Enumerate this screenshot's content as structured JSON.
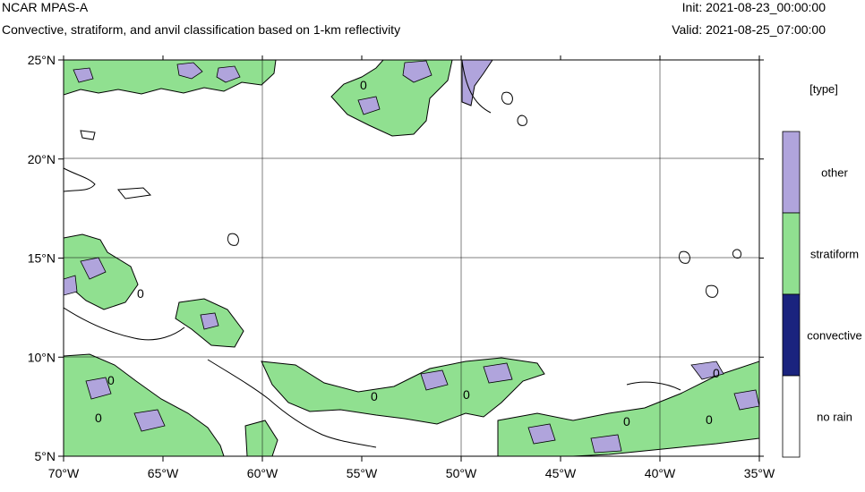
{
  "header": {
    "model": "NCAR MPAS-A",
    "description": "Convective, stratiform, and anvil classification based on 1-km reflectivity",
    "init": "Init: 2021-08-23_00:00:00",
    "valid": "Valid: 2021-08-25_07:00:00"
  },
  "map": {
    "lon_range": [
      -70,
      -35
    ],
    "lat_range": [
      5,
      25
    ],
    "lon_ticks": [
      {
        "value": -70,
        "label": "70°W"
      },
      {
        "value": -65,
        "label": "65°W"
      },
      {
        "value": -60,
        "label": "60°W"
      },
      {
        "value": -55,
        "label": "55°W"
      },
      {
        "value": -50,
        "label": "50°W"
      },
      {
        "value": -45,
        "label": "45°W"
      },
      {
        "value": -40,
        "label": "40°W"
      },
      {
        "value": -35,
        "label": "35°W"
      }
    ],
    "lat_ticks": [
      {
        "value": 25,
        "label": "25°N"
      },
      {
        "value": 20,
        "label": "20°N"
      },
      {
        "value": 15,
        "label": "15°N"
      },
      {
        "value": 10,
        "label": "10°N"
      },
      {
        "value": 5,
        "label": "5°N"
      }
    ],
    "contour_label": "0",
    "colors": {
      "stratiform": "#90e090",
      "other": "#b0a4dc",
      "convective": "#1a237e",
      "no_rain": "#ffffff"
    }
  },
  "legend": {
    "title": "[type]",
    "items": [
      {
        "label": "other",
        "color": "#b0a4dc"
      },
      {
        "label": "stratiform",
        "color": "#90e090"
      },
      {
        "label": "convective",
        "color": "#1a237e"
      },
      {
        "label": "no rain",
        "color": "#ffffff"
      }
    ]
  }
}
